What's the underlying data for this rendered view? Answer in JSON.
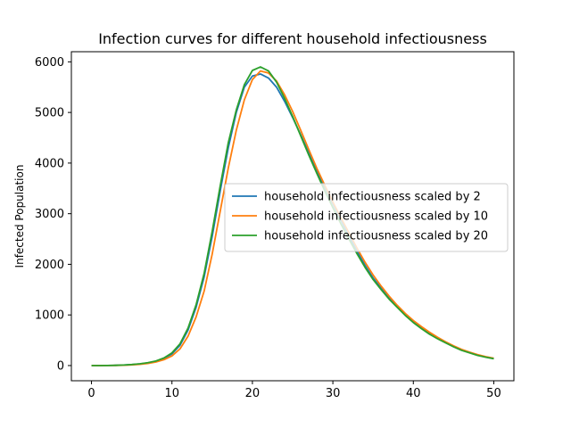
{
  "chart_data": {
    "type": "line",
    "title": "Infection curves for different household infectiousness",
    "xlabel": "",
    "ylabel": "Infected Population",
    "xlim": [
      -2.5,
      52.5
    ],
    "ylim": [
      -300,
      6200
    ],
    "xticks": [
      0,
      10,
      20,
      30,
      40,
      50
    ],
    "yticks": [
      0,
      1000,
      2000,
      3000,
      4000,
      5000,
      6000
    ],
    "grid": false,
    "legend_position": "center-right",
    "x": [
      0,
      1,
      2,
      3,
      4,
      5,
      6,
      7,
      8,
      9,
      10,
      11,
      12,
      13,
      14,
      15,
      16,
      17,
      18,
      19,
      20,
      21,
      22,
      23,
      24,
      25,
      26,
      27,
      28,
      29,
      30,
      31,
      32,
      33,
      34,
      35,
      36,
      37,
      38,
      39,
      40,
      41,
      42,
      43,
      44,
      45,
      46,
      47,
      48,
      49,
      50
    ],
    "series": [
      {
        "name": "household infectiousness scaled by 2",
        "color": "#1f77b4",
        "values": [
          0,
          0,
          2,
          5,
          10,
          18,
          32,
          52,
          85,
          140,
          230,
          400,
          700,
          1150,
          1750,
          2550,
          3450,
          4300,
          5000,
          5500,
          5720,
          5760,
          5680,
          5500,
          5220,
          4900,
          4560,
          4200,
          3860,
          3520,
          3200,
          2880,
          2560,
          2260,
          1980,
          1730,
          1530,
          1340,
          1170,
          1010,
          870,
          750,
          640,
          550,
          460,
          380,
          310,
          260,
          210,
          170,
          140
        ]
      },
      {
        "name": "household infectiousness scaled by 10",
        "color": "#ff7f0e",
        "values": [
          0,
          0,
          1,
          3,
          7,
          14,
          25,
          42,
          70,
          115,
          190,
          330,
          580,
          960,
          1470,
          2200,
          3050,
          3900,
          4650,
          5250,
          5650,
          5820,
          5780,
          5620,
          5350,
          5020,
          4650,
          4270,
          3900,
          3560,
          3230,
          2920,
          2620,
          2320,
          2040,
          1790,
          1570,
          1370,
          1190,
          1030,
          890,
          770,
          660,
          560,
          470,
          390,
          320,
          265,
          215,
          175,
          145
        ]
      },
      {
        "name": "household infectiousness scaled by 20",
        "color": "#2ca02c",
        "values": [
          0,
          0,
          2,
          5,
          11,
          20,
          35,
          56,
          90,
          150,
          250,
          430,
          740,
          1200,
          1820,
          2650,
          3550,
          4400,
          5050,
          5550,
          5830,
          5900,
          5820,
          5600,
          5280,
          4920,
          4540,
          4160,
          3800,
          3450,
          3120,
          2800,
          2500,
          2210,
          1940,
          1700,
          1500,
          1310,
          1150,
          990,
          850,
          730,
          620,
          530,
          450,
          370,
          300,
          250,
          200,
          165,
          135
        ]
      }
    ]
  }
}
